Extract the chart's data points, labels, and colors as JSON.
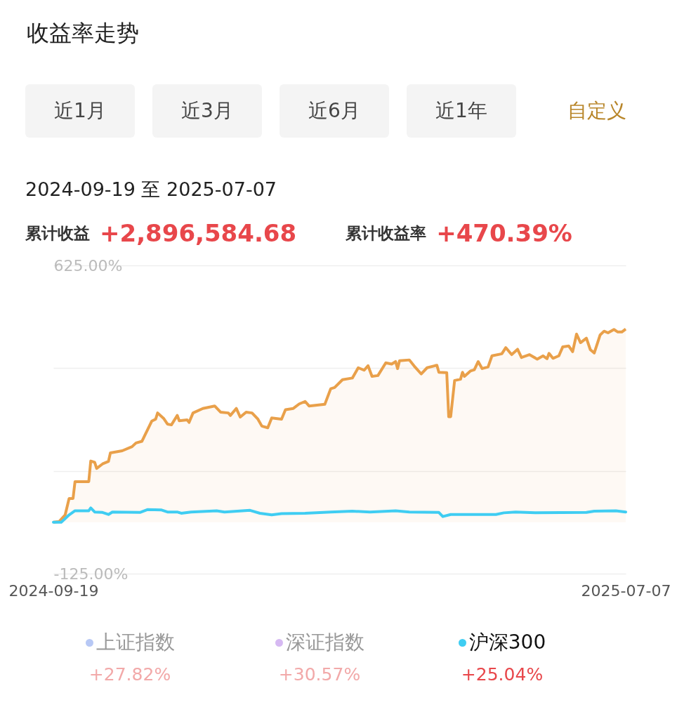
{
  "chart_data": {
    "type": "area",
    "title": "收益率走势",
    "annotations": [
      "近1月",
      "近3月",
      "近6月",
      "近1年",
      "自定义",
      "2024-09-19 至 2025-07-07",
      "累计收益",
      "+2,896,584.68",
      "累计收益率",
      "+470.39%",
      "上证指数",
      "+27.82%",
      "深证指数",
      "+30.57%",
      "+25.04%"
    ],
    "xlim": [
      "2024-09-19",
      "2025-07-07"
    ],
    "xticks": [
      {
        "value": "2024-09-19",
        "label": "2024-09-19"
      },
      {
        "value": "2025-07-07",
        "label": "2025-07-07"
      }
    ],
    "ylim": [
      -125,
      625
    ],
    "yticks": [
      {
        "value": -125,
        "label": "-125.00%"
      },
      {
        "value": 125,
        "label": null
      },
      {
        "value": 375,
        "label": null
      },
      {
        "value": 625,
        "label": "625.00%"
      }
    ],
    "grid": "y",
    "legend": "bottom",
    "line_style": "solid",
    "marker": "none",
    "series": [
      {
        "color": "#e9a04a",
        "x": [
          "2024-09-19",
          "2024-09-22",
          "2024-09-25",
          "2024-09-27",
          "2024-09-29",
          "2024-09-30",
          "2024-10-07",
          "2024-10-08",
          "2024-10-10",
          "2024-10-11",
          "2024-10-14",
          "2024-10-17",
          "2024-10-18",
          "2024-10-24",
          "2024-10-29",
          "2024-10-31",
          "2024-11-03",
          "2024-11-08",
          "2024-11-10",
          "2024-11-11",
          "2024-11-14",
          "2024-11-16",
          "2024-11-18",
          "2024-11-21",
          "2024-11-22",
          "2024-11-26",
          "2024-11-27",
          "2024-11-29",
          "2024-12-04",
          "2024-12-10",
          "2024-12-13",
          "2024-12-17",
          "2024-12-18",
          "2024-12-21",
          "2024-12-23",
          "2024-12-26",
          "2024-12-29",
          "2025-01-01",
          "2025-01-03",
          "2025-01-06",
          "2025-01-08",
          "2025-01-13",
          "2025-01-15",
          "2025-01-19",
          "2025-01-22",
          "2025-01-25",
          "2025-01-27",
          "2025-02-04",
          "2025-02-07",
          "2025-02-09",
          "2025-02-13",
          "2025-02-18",
          "2025-02-21",
          "2025-02-24",
          "2025-02-26",
          "2025-02-28",
          "2025-03-03",
          "2025-03-07",
          "2025-03-10",
          "2025-03-12",
          "2025-03-13",
          "2025-03-14",
          "2025-03-19",
          "2025-03-22",
          "2025-03-25",
          "2025-03-28",
          "2025-04-01",
          "2025-04-02",
          "2025-04-03",
          "2025-04-07",
          "2025-04-08",
          "2025-04-09",
          "2025-04-11",
          "2025-04-14",
          "2025-04-15",
          "2025-04-16",
          "2025-04-19",
          "2025-04-21",
          "2025-04-23",
          "2025-04-25",
          "2025-04-28",
          "2025-04-30",
          "2025-05-05",
          "2025-05-07",
          "2025-05-10",
          "2025-05-13",
          "2025-05-15",
          "2025-05-19",
          "2025-05-23",
          "2025-05-26",
          "2025-05-28",
          "2025-05-29",
          "2025-05-31",
          "2025-06-03",
          "2025-06-05",
          "2025-06-08",
          "2025-06-10",
          "2025-06-12",
          "2025-06-14",
          "2025-06-17",
          "2025-06-19",
          "2025-06-21",
          "2025-06-24",
          "2025-06-26",
          "2025-06-28",
          "2025-07-01",
          "2025-07-03",
          "2025-07-05",
          "2025-07-07"
        ],
        "values": [
          0,
          2,
          18,
          58,
          58,
          99,
          99,
          149,
          146,
          131,
          142,
          148,
          169,
          174,
          184,
          193,
          197,
          246,
          251,
          266,
          253,
          239,
          237,
          260,
          247,
          249,
          243,
          266,
          277,
          283,
          268,
          266,
          260,
          277,
          256,
          268,
          266,
          251,
          234,
          230,
          254,
          251,
          274,
          277,
          288,
          294,
          283,
          287,
          325,
          328,
          347,
          351,
          376,
          370,
          381,
          355,
          357,
          388,
          385,
          391,
          374,
          393,
          395,
          377,
          361,
          376,
          381,
          382,
          365,
          364,
          257,
          257,
          345,
          348,
          365,
          355,
          368,
          371,
          391,
          374,
          378,
          405,
          410,
          425,
          408,
          421,
          401,
          408,
          397,
          405,
          398,
          411,
          399,
          405,
          427,
          429,
          415,
          458,
          437,
          448,
          420,
          412,
          456,
          465,
          461,
          469,
          463,
          463,
          470
        ]
      },
      {
        "type": "line",
        "name": "沪深300",
        "color": "#3fcdf2",
        "x": [
          "2024-09-19",
          "2024-09-23",
          "2024-09-27",
          "2024-09-30",
          "2024-10-07",
          "2024-10-08",
          "2024-10-10",
          "2024-10-14",
          "2024-10-17",
          "2024-10-19",
          "2024-11-02",
          "2024-11-06",
          "2024-11-13",
          "2024-11-16",
          "2024-11-21",
          "2024-11-23",
          "2024-11-28",
          "2024-12-11",
          "2024-12-15",
          "2024-12-28",
          "2025-01-02",
          "2025-01-08",
          "2025-01-13",
          "2025-01-25",
          "2025-02-07",
          "2025-02-18",
          "2025-02-27",
          "2025-03-12",
          "2025-03-19",
          "2025-04-03",
          "2025-04-05",
          "2025-04-09",
          "2025-05-02",
          "2025-05-06",
          "2025-05-12",
          "2025-05-22",
          "2025-06-17",
          "2025-06-21",
          "2025-07-02",
          "2025-07-07"
        ],
        "values": [
          0,
          0,
          18,
          28,
          28,
          35,
          25,
          24,
          19,
          25,
          24,
          31,
          30,
          25,
          25,
          22,
          25,
          28,
          25,
          29,
          22,
          18,
          21,
          22,
          25,
          27,
          25,
          28,
          25,
          24,
          14,
          19,
          19,
          23,
          25,
          23,
          24,
          27,
          28,
          25
        ]
      }
    ]
  }
}
